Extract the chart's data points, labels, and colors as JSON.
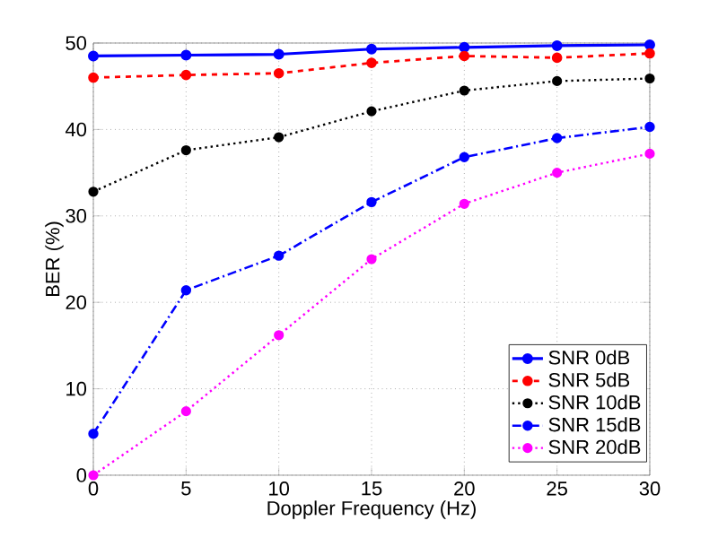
{
  "chart_data": {
    "type": "line",
    "xlabel": "Doppler Frequency (Hz)",
    "ylabel": "BER (%)",
    "x": [
      0,
      5,
      10,
      15,
      20,
      25,
      30
    ],
    "xlim": [
      0,
      30
    ],
    "xticks": [
      0,
      5,
      10,
      15,
      20,
      25,
      30
    ],
    "ylim": [
      0,
      50
    ],
    "yticks": [
      0,
      10,
      20,
      30,
      40,
      50
    ],
    "grid": true,
    "legend": "bottom right",
    "marker": "circle",
    "series": [
      {
        "name": "SNR 0dB",
        "color": "#0000ff",
        "line_style": "solid",
        "values": [
          48.5,
          48.6,
          48.7,
          49.3,
          49.5,
          49.7,
          49.8
        ]
      },
      {
        "name": "SNR 5dB",
        "color": "#ff0000",
        "line_style": "dashed",
        "values": [
          46.0,
          46.3,
          46.5,
          47.7,
          48.5,
          48.3,
          48.8
        ]
      },
      {
        "name": "SNR 10dB",
        "color": "#000000",
        "line_style": "dotted",
        "values": [
          32.8,
          37.6,
          39.1,
          42.1,
          44.5,
          45.6,
          45.9
        ]
      },
      {
        "name": "SNR 15dB",
        "color": "#0000ff",
        "line_style": "dashdot",
        "values": [
          4.8,
          21.4,
          25.4,
          31.6,
          36.8,
          39.0,
          40.3
        ]
      },
      {
        "name": "SNR 20dB",
        "color": "#ff00ff",
        "line_style": "dotted",
        "values": [
          0.0,
          7.4,
          16.2,
          25.0,
          31.4,
          35.0,
          37.2
        ]
      }
    ]
  }
}
